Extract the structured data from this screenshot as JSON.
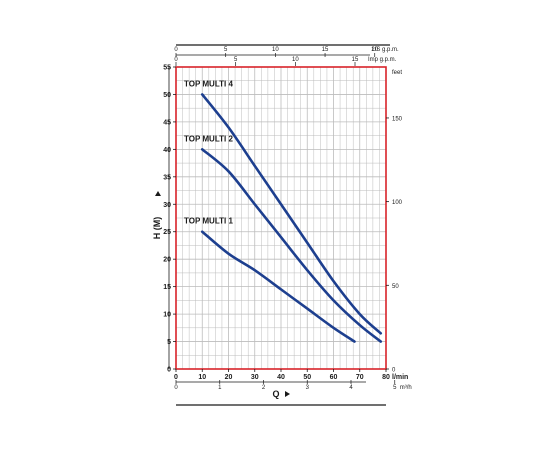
{
  "chart_data": {
    "type": "line",
    "x": {
      "label": "Q",
      "unit": "l/min",
      "range": [
        0,
        80
      ],
      "ticks": [
        0,
        10,
        20,
        30,
        40,
        50,
        60,
        70,
        80
      ]
    },
    "y": {
      "label": "H (M)",
      "range": [
        0,
        55
      ],
      "ticks": [
        0,
        5,
        10,
        15,
        20,
        25,
        30,
        35,
        40,
        45,
        50,
        55
      ]
    },
    "y_right": {
      "unit": "feet",
      "ticks": [
        0,
        50,
        100,
        150
      ]
    },
    "x_top_us": {
      "unit": "US g.p.m.",
      "ticks": [
        0,
        5,
        10,
        15,
        20
      ]
    },
    "x_top_imp": {
      "unit": "Imp g.p.m.",
      "ticks": [
        0,
        5,
        10,
        15
      ]
    },
    "x_bottom_m3h": {
      "unit": "m³/h",
      "ticks": [
        0,
        1,
        2,
        3,
        4,
        5
      ]
    },
    "grid": true,
    "series": [
      {
        "name": "TOP MULTI 4",
        "color": "#1d3f8f",
        "points": [
          [
            10,
            50
          ],
          [
            20,
            44
          ],
          [
            30,
            37
          ],
          [
            40,
            30
          ],
          [
            50,
            23
          ],
          [
            60,
            16
          ],
          [
            70,
            10
          ],
          [
            78,
            6.5
          ]
        ]
      },
      {
        "name": "TOP MULTI 2",
        "color": "#1d3f8f",
        "points": [
          [
            10,
            40
          ],
          [
            20,
            36
          ],
          [
            30,
            30
          ],
          [
            40,
            24
          ],
          [
            50,
            18
          ],
          [
            60,
            12.5
          ],
          [
            70,
            8
          ],
          [
            78,
            5
          ]
        ]
      },
      {
        "name": "TOP MULTI 1",
        "color": "#1d3f8f",
        "points": [
          [
            10,
            25
          ],
          [
            20,
            21
          ],
          [
            30,
            18
          ],
          [
            40,
            14.5
          ],
          [
            50,
            11
          ],
          [
            60,
            7.5
          ],
          [
            68,
            5
          ]
        ]
      }
    ],
    "colors": {
      "frame": "#d8232a",
      "grid": "#bcbcbc",
      "curve": "#1d3f8f",
      "text": "#1a1a1a"
    }
  }
}
